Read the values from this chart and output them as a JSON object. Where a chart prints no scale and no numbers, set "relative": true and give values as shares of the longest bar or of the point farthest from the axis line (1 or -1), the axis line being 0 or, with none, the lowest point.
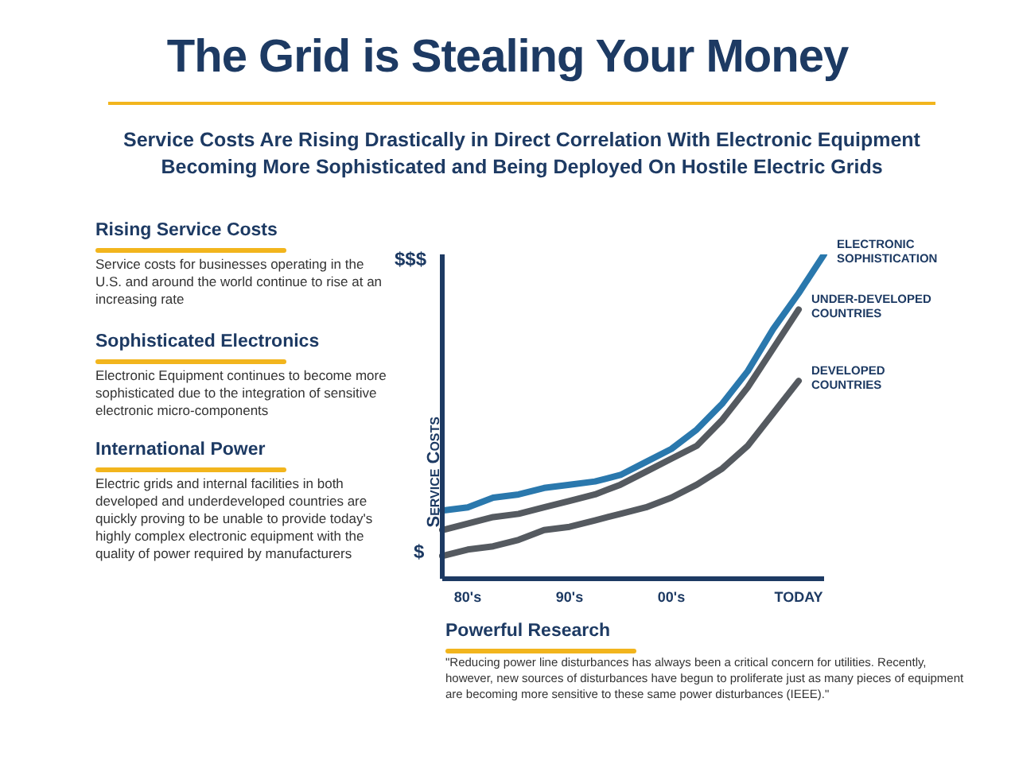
{
  "chart_data": {
    "type": "line",
    "title": "The Grid is Stealing Your Money",
    "subtitle": "Service Costs Are Rising Drastically in Direct Correlation With Electronic Equipment Becoming More Sophisticated and Being Deployed On Hostile Electric Grids",
    "ylabel": "Service Costs",
    "relative": true,
    "categories": [
      null,
      "80's",
      null,
      null,
      null,
      "90's",
      null,
      null,
      null,
      "00's",
      null,
      null,
      null,
      null,
      "TODAY",
      null
    ],
    "series": [
      {
        "name": "ELECTRONIC SOPHISTICATION",
        "color": "#2a78ad",
        "values": [
          0.21,
          0.22,
          0.25,
          0.26,
          0.28,
          0.29,
          0.3,
          0.32,
          0.36,
          0.4,
          0.46,
          0.54,
          0.64,
          0.77,
          0.88,
          1
        ]
      },
      {
        "name": "UNDER-DEVELOPED COUNTRIES",
        "color": "#555a60",
        "values": [
          0.15,
          0.17,
          0.19,
          0.2,
          0.22,
          0.24,
          0.26,
          0.29,
          0.33,
          0.37,
          0.41,
          0.49,
          0.59,
          0.71,
          0.83,
          null
        ]
      },
      {
        "name": "DEVELOPED COUNTRIES",
        "color": "#555a60",
        "values": [
          0.07,
          0.09,
          0.1,
          0.12,
          0.15,
          0.16,
          0.18,
          0.2,
          0.22,
          0.25,
          0.29,
          0.34,
          0.41,
          0.51,
          0.61,
          null
        ]
      }
    ],
    "annotations": [
      "$$$",
      "$",
      "Rising Service Costs",
      "Service costs for businesses operating in the U.S. and around the world continue to rise at an increasing rate",
      "Sophisticated Electronics",
      "Electronic Equipment continues to become more sophisticated due to the integration of sensitive electronic micro-components",
      "International Power",
      "Electric grids and internal facilities in both developed and underdeveloped countries are quickly proving to be unable to provide today's highly complex electronic equipment with the quality of power required by manufacturers",
      "Powerful Research",
      "\"Reducing power line disturbances has always been a critical concern for utilities.  Recently, however, new sources of disturbances have begun to proliferate just as many pieces of equipment are becoming more sensitive to these same power disturbances (IEEE).\""
    ]
  }
}
